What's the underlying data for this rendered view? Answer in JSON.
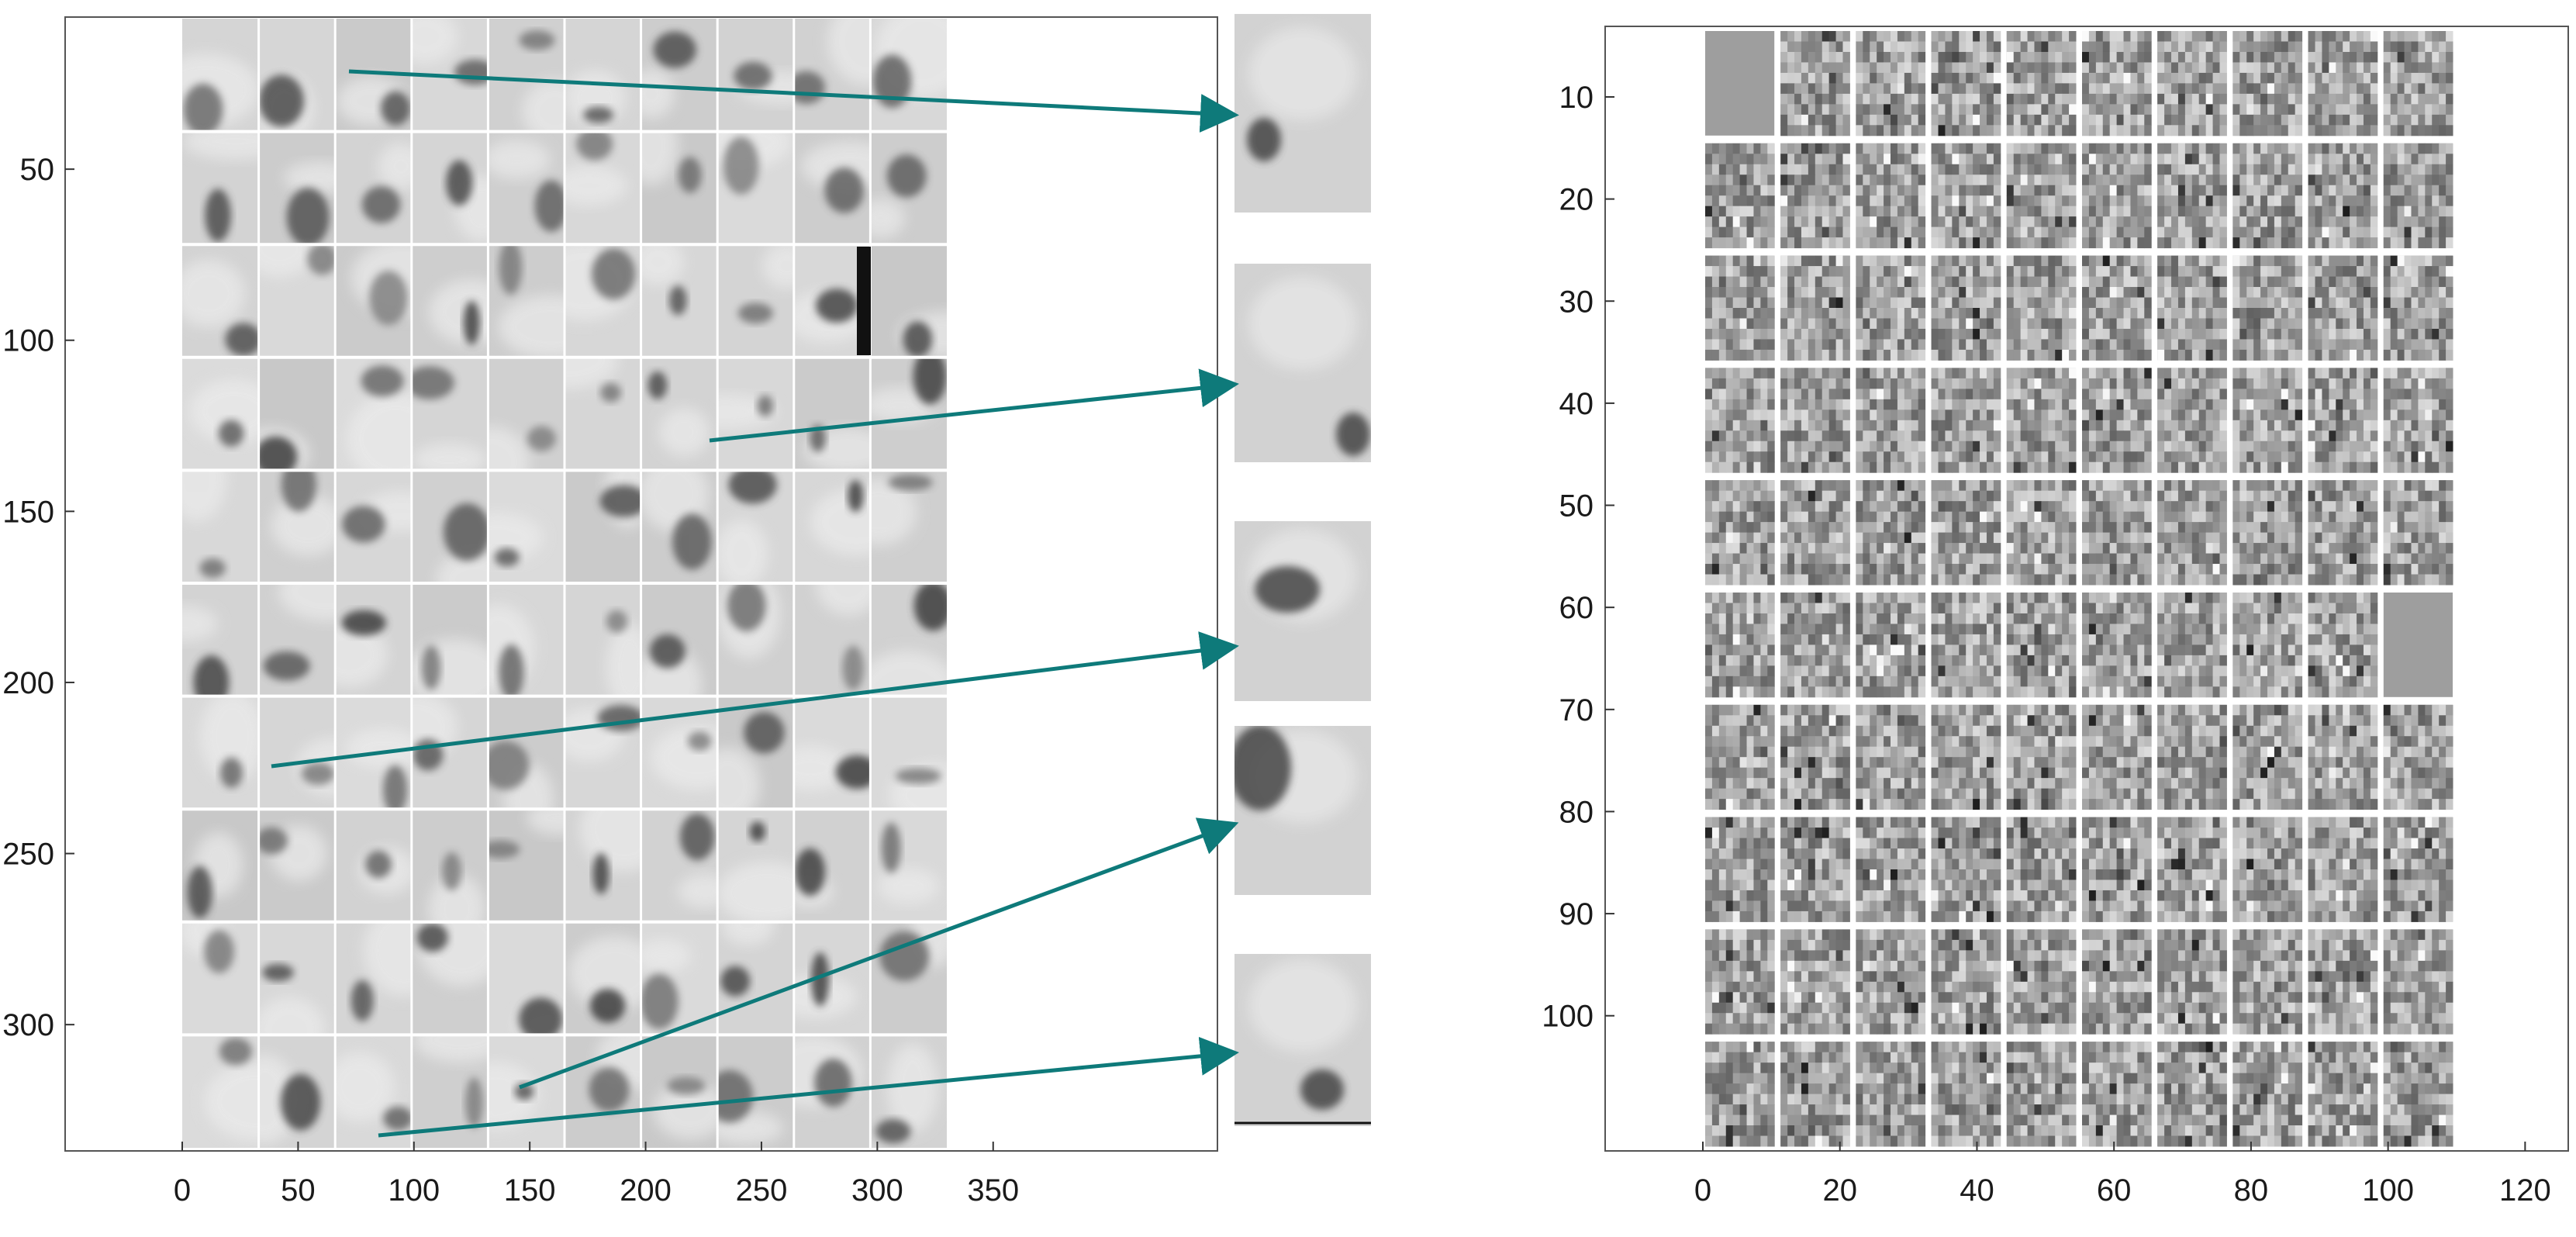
{
  "left_panel": {
    "grid": {
      "rows": 10,
      "cols": 10
    },
    "x_ticks": [
      "0",
      "50",
      "100",
      "150",
      "200",
      "250",
      "300",
      "350"
    ],
    "y_ticks": [
      "50",
      "100",
      "150",
      "200",
      "250",
      "300"
    ]
  },
  "zoom_patches": {
    "count": 5,
    "arrow_color": "#0e7a7a"
  },
  "right_panel": {
    "grid": {
      "rows": 10,
      "cols": 10
    },
    "x_ticks": [
      "0",
      "20",
      "40",
      "60",
      "80",
      "100",
      "120"
    ],
    "y_ticks": [
      "10",
      "20",
      "30",
      "40",
      "50",
      "60",
      "70",
      "80",
      "90",
      "100"
    ]
  }
}
